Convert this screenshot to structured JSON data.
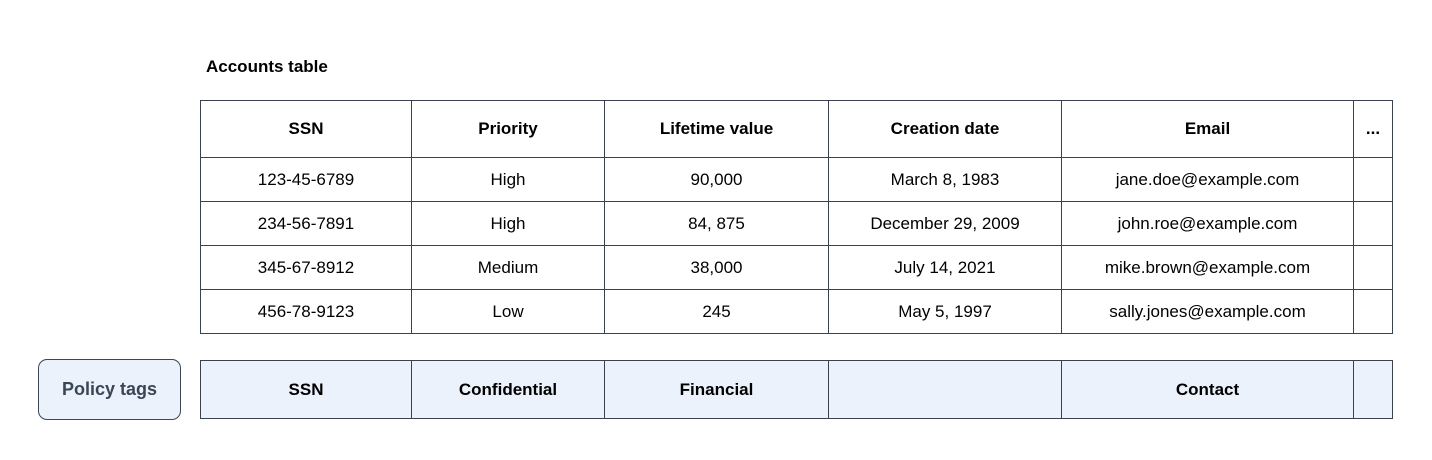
{
  "accounts_table": {
    "title": "Accounts table",
    "columns": [
      "SSN",
      "Priority",
      "Lifetime value",
      "Creation date",
      "Email",
      "..."
    ],
    "rows": [
      [
        "123-45-6789",
        "High",
        "90,000",
        "March 8, 1983",
        "jane.doe@example.com",
        ""
      ],
      [
        "234-56-7891",
        "High",
        "84, 875",
        "December 29, 2009",
        "john.roe@example.com",
        ""
      ],
      [
        "345-67-8912",
        "Medium",
        "38,000",
        "July 14, 2021",
        "mike.brown@example.com",
        ""
      ],
      [
        "456-78-9123",
        "Low",
        "245",
        "May 5, 1997",
        "sally.jones@example.com",
        ""
      ]
    ]
  },
  "policy_tags": {
    "button_label": "Policy tags",
    "tags": [
      "SSN",
      "Confidential",
      "Financial",
      "",
      "Contact",
      ""
    ]
  },
  "colors": {
    "table_border": "#39424e",
    "policy_row_fill": "#ebf2fc",
    "policy_button_fill": "#ebf2fc",
    "policy_button_border": "#3d4653",
    "policy_button_text": "#3a4556",
    "table_text": "#000000"
  }
}
